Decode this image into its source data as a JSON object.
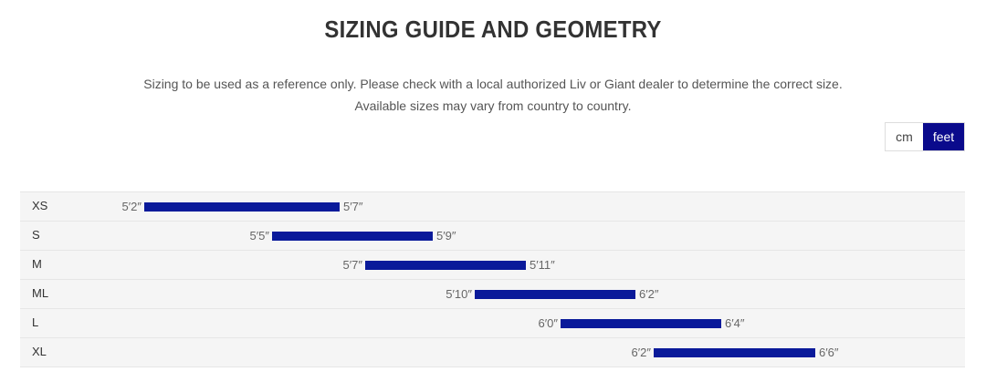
{
  "title": "SIZING GUIDE AND GEOMETRY",
  "subtitle_line1": "Sizing to be used as a reference only. Please check with a local authorized Liv or Giant dealer to determine the correct size.",
  "subtitle_line2": "Available sizes may vary from country to country.",
  "unit_toggle": {
    "options": [
      "cm",
      "feet"
    ],
    "selected": "feet",
    "accent": "#0a0a8c"
  },
  "sizes": [
    {
      "size": "XS",
      "min": "5′2″",
      "max": "5′7″"
    },
    {
      "size": "S",
      "min": "5′5″",
      "max": "5′9″"
    },
    {
      "size": "M",
      "min": "5′7″",
      "max": "5′11″"
    },
    {
      "size": "ML",
      "min": "5′10″",
      "max": "6′2″"
    },
    {
      "size": "L",
      "min": "6′0″",
      "max": "6′4″"
    },
    {
      "size": "XL",
      "min": "6′2″",
      "max": "6′6″"
    }
  ],
  "bar_color": "#0a1a9a"
}
